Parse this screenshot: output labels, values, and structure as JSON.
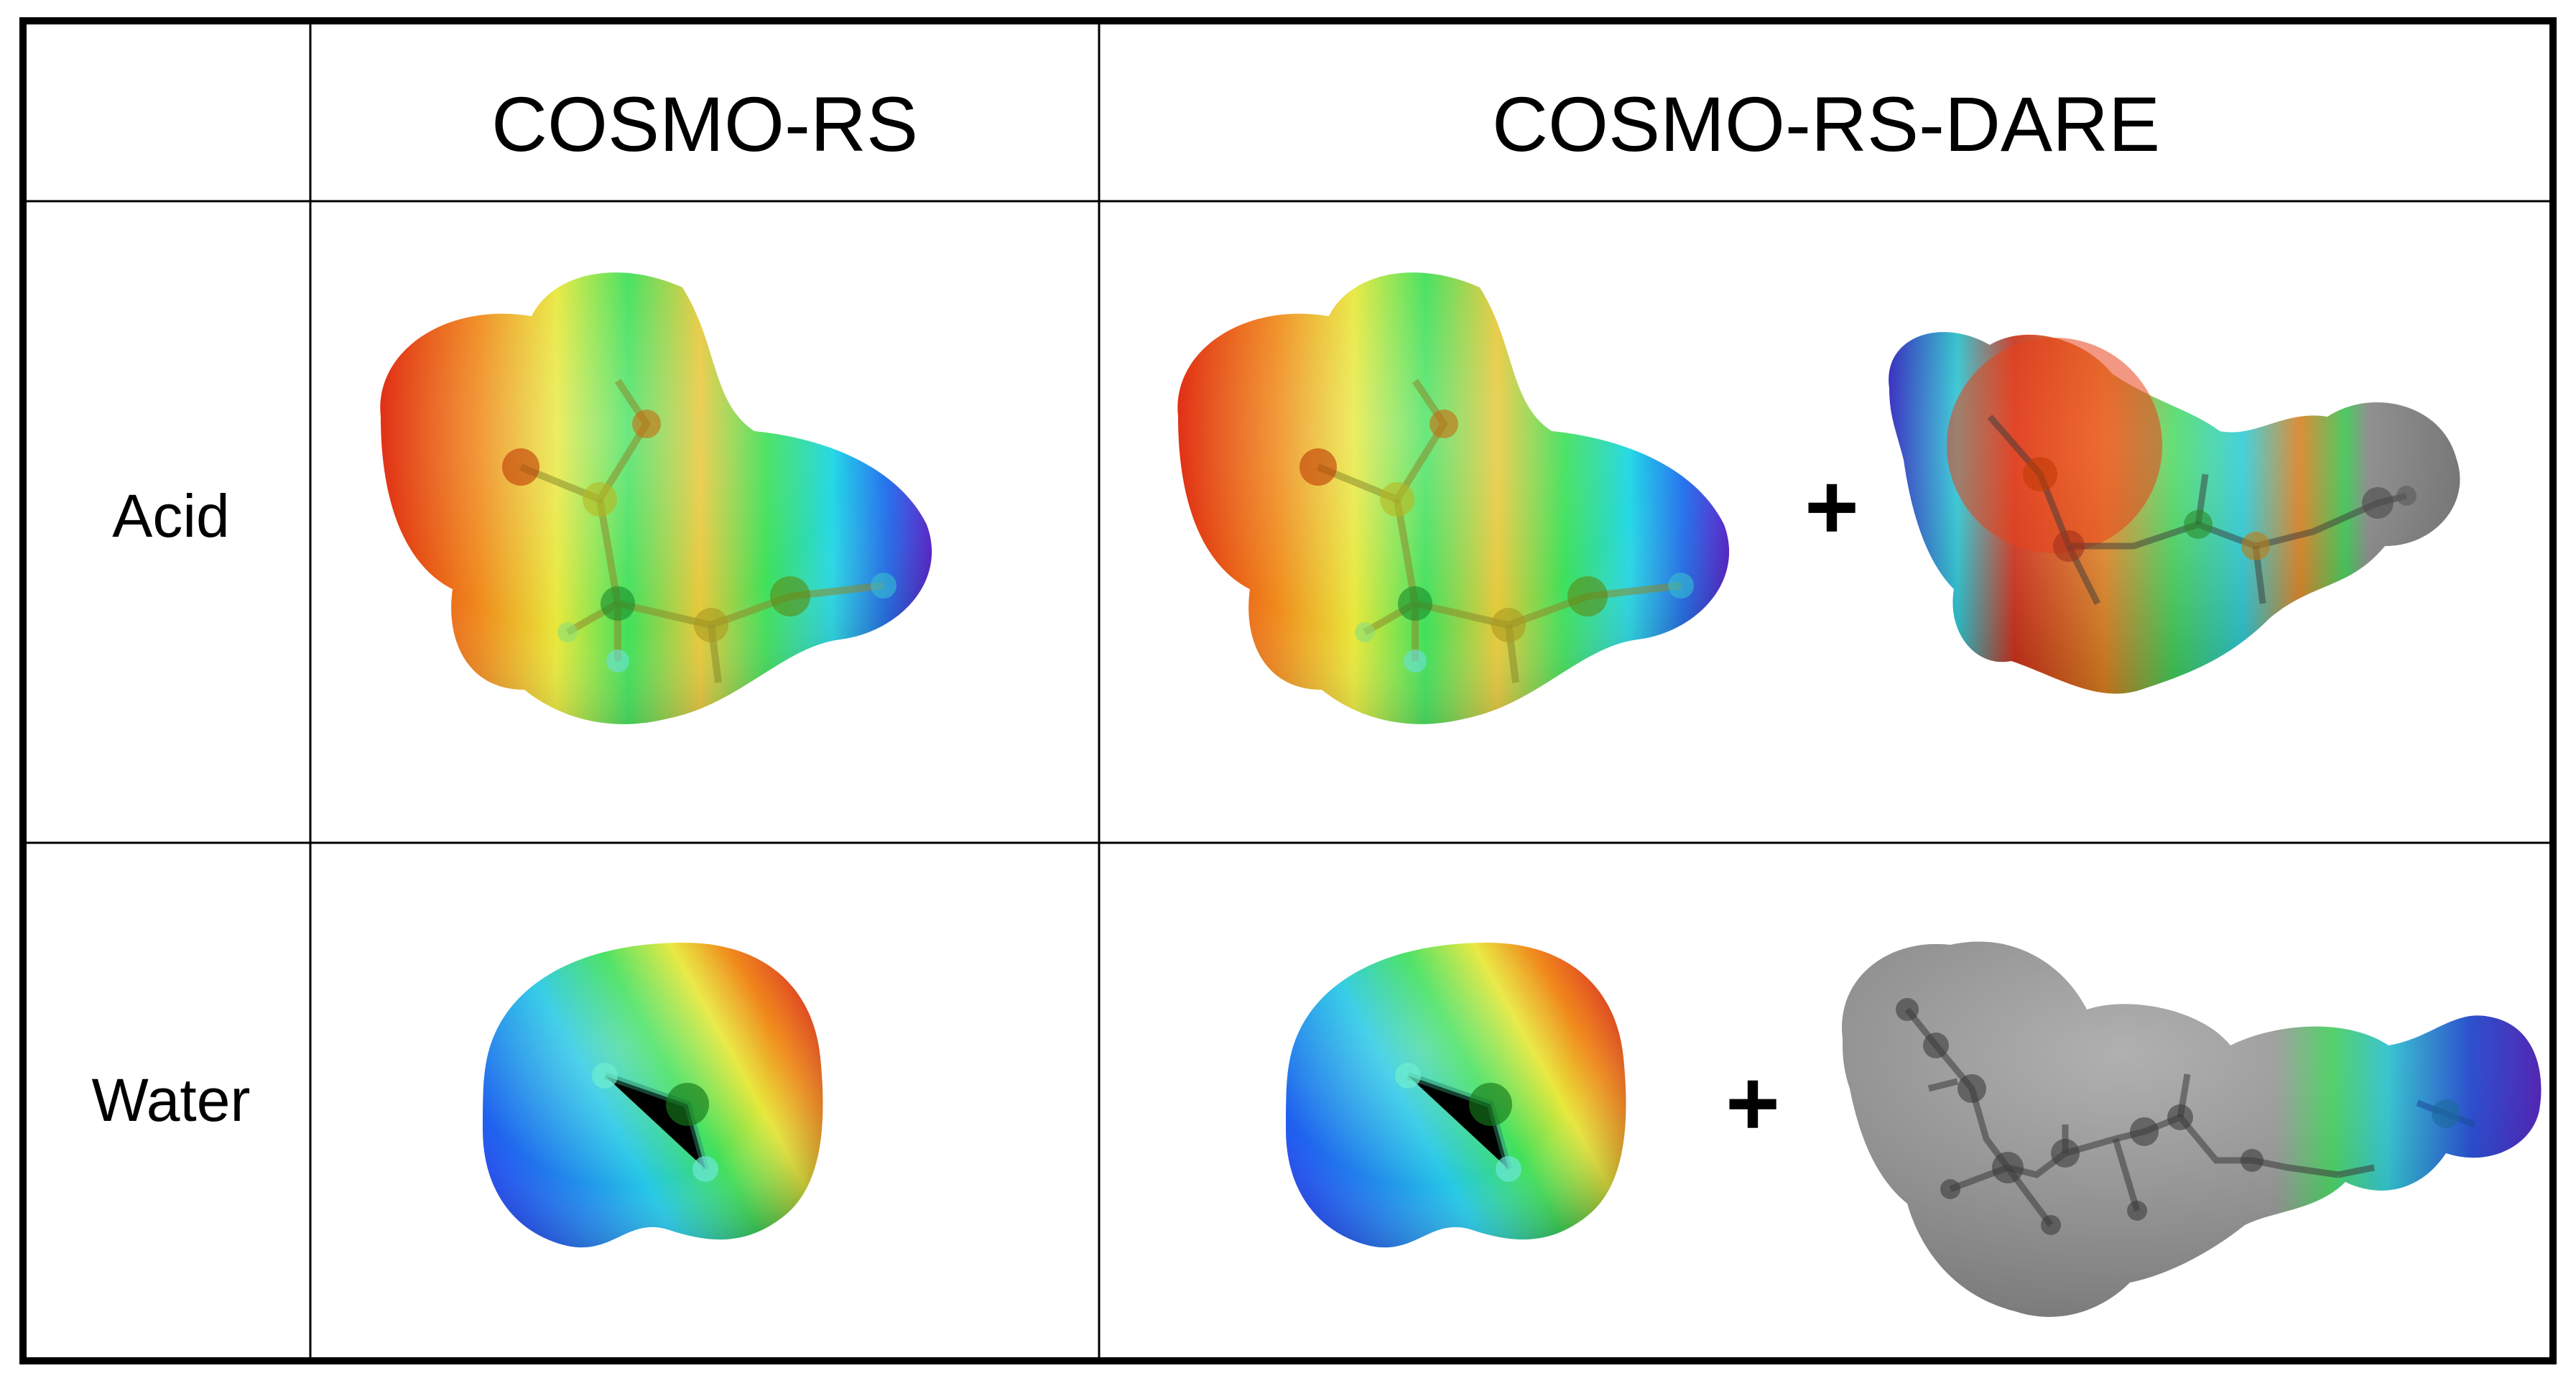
{
  "table": {
    "columns": [
      "COSMO-RS",
      "COSMO-RS-DARE"
    ],
    "rows": [
      "Acid",
      "Water"
    ],
    "plus_symbol": "+"
  },
  "colors": {
    "surface_scale": [
      "#2a1fd8",
      "#1e6cf0",
      "#25d8e6",
      "#3fe05a",
      "#e8e83a",
      "#f08a1c",
      "#e02a10"
    ],
    "dimer_partner_gray": "#9a9a9a",
    "border": "#000000"
  },
  "panels": [
    {
      "row": "Acid",
      "column": "COSMO-RS",
      "content": "acid-molecule-surface"
    },
    {
      "row": "Acid",
      "column": "COSMO-RS-DARE",
      "content": [
        "acid-molecule-surface",
        "acid-dimer-surface"
      ]
    },
    {
      "row": "Water",
      "column": "COSMO-RS",
      "content": "water-molecule-surface"
    },
    {
      "row": "Water",
      "column": "COSMO-RS-DARE",
      "content": [
        "water-molecule-surface",
        "water-acid-dimer-surface"
      ]
    }
  ]
}
